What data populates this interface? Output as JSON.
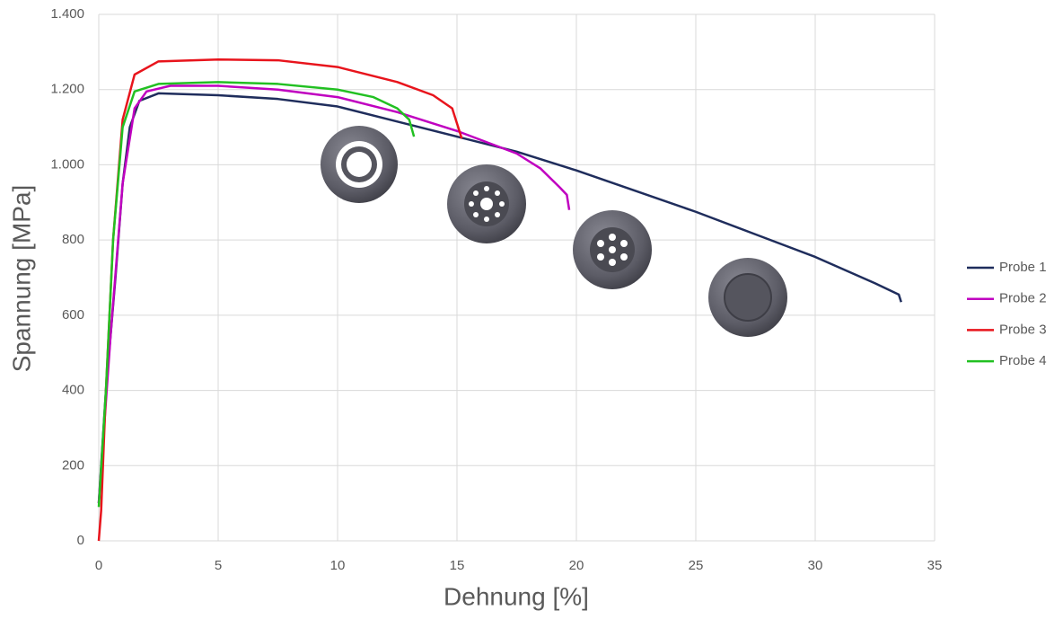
{
  "chart_data": {
    "type": "line",
    "x_label": "Dehnung [%]",
    "y_label": "Spannung [MPa]",
    "xlim": [
      0,
      35
    ],
    "xticks": [
      0,
      5,
      10,
      15,
      20,
      25,
      30,
      35
    ],
    "ylim": [
      0,
      1400
    ],
    "yticks": [
      0,
      200,
      400,
      600,
      800,
      {
        "value": 1000,
        "label": "1.000"
      },
      {
        "value": 1200,
        "label": "1.200"
      },
      {
        "value": 1400,
        "label": "1.400"
      }
    ],
    "grid": true,
    "legend": "right",
    "series": [
      {
        "name": "Probe 1",
        "color": "#1f2d5c",
        "x": [
          0,
          0.3,
          0.5,
          0.7,
          1,
          1.3,
          1.7,
          2.5,
          5,
          7.5,
          10,
          12.5,
          15,
          17.5,
          20,
          22.5,
          25,
          27.5,
          30,
          32.5,
          33.5,
          33.6
        ],
        "values": [
          100,
          400,
          550,
          700,
          950,
          1100,
          1170,
          1190,
          1185,
          1175,
          1155,
          1115,
          1075,
          1035,
          985,
          930,
          875,
          815,
          755,
          685,
          655,
          635
        ]
      },
      {
        "name": "Probe 2",
        "color": "#c000c0",
        "x": [
          0,
          0.5,
          1,
          1.5,
          2,
          3,
          5,
          7.5,
          10,
          12.5,
          15,
          17.5,
          18.5,
          19.3,
          19.6,
          19.7
        ],
        "values": [
          100,
          550,
          950,
          1150,
          1195,
          1210,
          1210,
          1200,
          1180,
          1140,
          1090,
          1030,
          990,
          940,
          920,
          880
        ]
      },
      {
        "name": "Probe 3",
        "color": "#e8141c",
        "x": [
          0,
          0.1,
          0.3,
          0.6,
          1,
          1.5,
          2.5,
          5,
          7.5,
          10,
          12.5,
          14,
          14.8,
          15.2
        ],
        "values": [
          0,
          80,
          400,
          800,
          1120,
          1240,
          1275,
          1280,
          1278,
          1260,
          1220,
          1185,
          1150,
          1070
        ]
      },
      {
        "name": "Probe 4",
        "color": "#22c022",
        "x": [
          0,
          0.3,
          0.6,
          1,
          1.5,
          2.5,
          5,
          7.5,
          10,
          11.5,
          12.5,
          13,
          13.2
        ],
        "values": [
          90,
          400,
          800,
          1100,
          1195,
          1215,
          1220,
          1215,
          1200,
          1180,
          1150,
          1120,
          1075
        ]
      }
    ]
  }
}
